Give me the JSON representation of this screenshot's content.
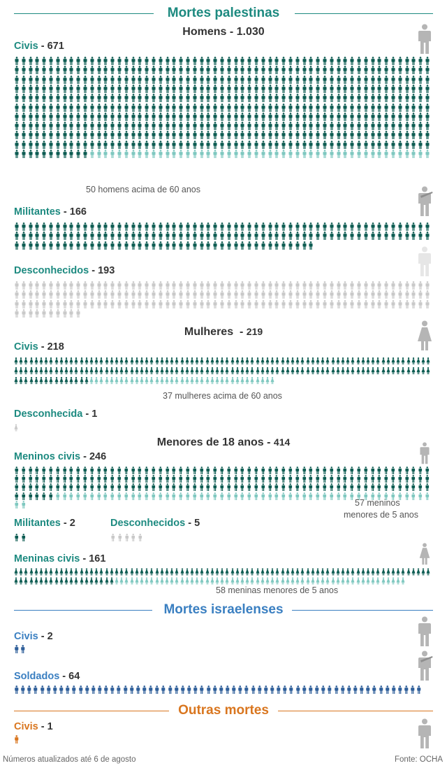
{
  "colors": {
    "pal_dark": "#0d5c52",
    "pal_light": "#7fc8c0",
    "unknown": "#c9c9c9",
    "israel": "#2f5f9a",
    "israel_title": "#3a7fc1",
    "other": "#d9761f",
    "pal_title": "#1d8a80",
    "side_icon": "#b5b5b5"
  },
  "sections": {
    "palestine": "Mortes palestinas",
    "israel": "Mortes israelenses",
    "other": "Outras mortes"
  },
  "subsections": {
    "men": {
      "label": "Homens",
      "count": "1.030"
    },
    "women": {
      "label": "Mulheres",
      "count": "219"
    },
    "minors": {
      "label": "Menores de 18 anos",
      "count": "414"
    }
  },
  "groups": {
    "men_civ": {
      "label": "Civis",
      "count": "671"
    },
    "men_mil": {
      "label": "Militantes",
      "count": "166"
    },
    "men_unk": {
      "label": "Desconhecidos",
      "count": "193"
    },
    "women_civ": {
      "label": "Civis",
      "count": "218"
    },
    "women_unk": {
      "label": "Desconhecida",
      "count": "1"
    },
    "boys_civ": {
      "label": "Meninos civis",
      "count": "246"
    },
    "boys_mil": {
      "label": "Militantes",
      "count": "2"
    },
    "boys_unk": {
      "label": "Desconhecidos",
      "count": "5"
    },
    "girls_civ": {
      "label": "Meninas civis",
      "count": "161"
    },
    "isr_civ": {
      "label": "Civis",
      "count": "2"
    },
    "isr_sol": {
      "label": "Soldados",
      "count": "64"
    },
    "oth_civ": {
      "label": "Civis",
      "count": "1"
    }
  },
  "notes": {
    "men_old": "50 homens acima de 60 anos",
    "women_old": "37 mulheres acima de 60 anos",
    "boys_young_1": "57 meninos",
    "boys_young_2": "menores de 5 anos",
    "girls_young": "58 meninas menores de 5 anos"
  },
  "footer": {
    "left": "Números atualizados até 6 de agosto",
    "right": "Fonte: OCHA"
  },
  "chart_data": {
    "type": "table",
    "title": "Mortes palestinas",
    "rows": [
      {
        "category": "Homens",
        "group": "Civis",
        "value": 671,
        "highlighted": 50,
        "highlight_note": "50 homens acima de 60 anos"
      },
      {
        "category": "Homens",
        "group": "Militantes",
        "value": 166
      },
      {
        "category": "Homens",
        "group": "Desconhecidos",
        "value": 193
      },
      {
        "category": "Mulheres",
        "group": "Civis",
        "value": 218,
        "highlighted": 37,
        "highlight_note": "37 mulheres acima de 60 anos"
      },
      {
        "category": "Mulheres",
        "group": "Desconhecida",
        "value": 1
      },
      {
        "category": "Menores de 18 anos",
        "group": "Meninos civis",
        "value": 246,
        "highlighted": 57,
        "highlight_note": "57 meninos menores de 5 anos"
      },
      {
        "category": "Menores de 18 anos",
        "group": "Militantes",
        "value": 2
      },
      {
        "category": "Menores de 18 anos",
        "group": "Desconhecidos",
        "value": 5
      },
      {
        "category": "Menores de 18 anos",
        "group": "Meninas civis",
        "value": 161,
        "highlighted": 58,
        "highlight_note": "58 meninas menores de 5 anos"
      },
      {
        "category": "Mortes israelenses",
        "group": "Civis",
        "value": 2
      },
      {
        "category": "Mortes israelenses",
        "group": "Soldados",
        "value": 64
      },
      {
        "category": "Outras mortes",
        "group": "Civis",
        "value": 1
      }
    ]
  }
}
